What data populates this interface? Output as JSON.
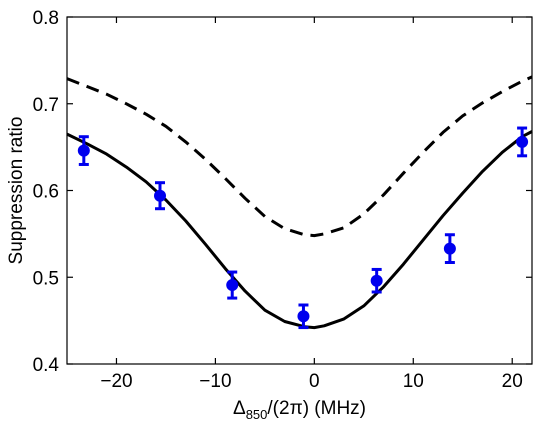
{
  "chart_data": {
    "type": "scatter",
    "xlabel": {
      "main": "Δ",
      "subscript": "850",
      "rest": "/(2π) (MHz)"
    },
    "ylabel": "Suppression ratio",
    "xlim": [
      -25,
      22
    ],
    "ylim": [
      0.4,
      0.8
    ],
    "xticks": [
      -20,
      -10,
      0,
      10,
      20
    ],
    "xtick_labels": [
      "−20",
      "−10",
      "0",
      "10",
      "20"
    ],
    "yticks": [
      0.4,
      0.5,
      0.6,
      0.7,
      0.8
    ],
    "ytick_labels": [
      "0.4",
      "0.5",
      "0.6",
      "0.7",
      "0.8"
    ],
    "grid": false,
    "series": [
      {
        "style": "markers-errorbars",
        "color": "#0000ee",
        "x": [
          -23.3,
          -15.6,
          -8.3,
          -1.1,
          6.3,
          13.7,
          21.0
        ],
        "y": [
          0.646,
          0.594,
          0.491,
          0.455,
          0.496,
          0.533,
          0.656
        ],
        "yerr": [
          0.016,
          0.015,
          0.015,
          0.013,
          0.013,
          0.016,
          0.016
        ]
      },
      {
        "style": "solid",
        "color": "#000000",
        "x": [
          -25,
          -23,
          -21,
          -19,
          -17,
          -15,
          -13,
          -11,
          -9,
          -7,
          -5,
          -3,
          -1,
          0,
          1,
          3,
          5,
          7,
          9,
          11,
          13,
          15,
          17,
          19,
          21,
          22
        ],
        "y": [
          0.665,
          0.654,
          0.642,
          0.627,
          0.61,
          0.589,
          0.565,
          0.538,
          0.51,
          0.484,
          0.462,
          0.449,
          0.443,
          0.442,
          0.444,
          0.452,
          0.467,
          0.489,
          0.515,
          0.543,
          0.571,
          0.597,
          0.622,
          0.644,
          0.662,
          0.668
        ]
      },
      {
        "style": "dashed",
        "color": "#000000",
        "x": [
          -25,
          -23,
          -21,
          -19,
          -17,
          -15,
          -13,
          -11,
          -9,
          -7,
          -5,
          -3,
          -1,
          0,
          1,
          3,
          5,
          7,
          9,
          11,
          13,
          15,
          17,
          19,
          21,
          22
        ],
        "y": [
          0.729,
          0.72,
          0.711,
          0.7,
          0.688,
          0.674,
          0.656,
          0.636,
          0.614,
          0.591,
          0.57,
          0.556,
          0.549,
          0.548,
          0.55,
          0.557,
          0.573,
          0.595,
          0.62,
          0.644,
          0.667,
          0.686,
          0.701,
          0.714,
          0.726,
          0.731
        ]
      }
    ]
  }
}
